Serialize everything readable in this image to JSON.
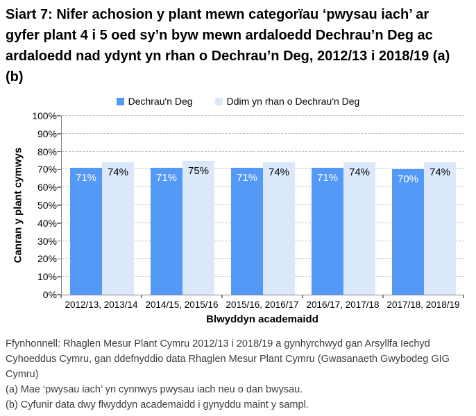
{
  "title": "Siart 7: Nifer achosion y plant mewn categorïau ‘pwysau iach’ ar gyfer plant 4 i 5 oed sy’n byw mewn ardaloedd Dechrau’n Deg ac ardaloedd nad ydynt yn rhan o Dechrau’n Deg, 2012/13 i 2018/19 (a) (b)",
  "chart_data": {
    "type": "bar",
    "categories": [
      "2012/13, 2013/14",
      "2014/15, 2015/16",
      "2015/16, 2016/17",
      "2016/17, 2017/18",
      "2017/18, 2018/19"
    ],
    "series": [
      {
        "name": "Dechrau'n Deg",
        "color": "#5599F7",
        "label_color": "#ffffff",
        "values": [
          71,
          71,
          71,
          71,
          70
        ]
      },
      {
        "name": "Ddim yn rhan o Dechrau'n Deg",
        "color": "#DBE8FB",
        "label_color": "#000000",
        "values": [
          74,
          75,
          74,
          74,
          74
        ]
      }
    ],
    "xlabel": "Blwyddyn academaidd",
    "ylabel": "Canran y plant cymwys",
    "ylim": [
      0,
      100
    ],
    "ytick_step": 10,
    "ytick_suffix": "%",
    "grid": "horizontal-dashed",
    "legend_position": "top"
  },
  "footer": {
    "source": "Ffynhonnell: Rhaglen Mesur Plant Cymru 2012/13 i 2018/19 a gynhyrchwyd gan Arsyllfa Iechyd Cyhoeddus Cymru, gan ddefnyddio data Rhaglen Mesur Plant Cymru (Gwasanaeth Gwybodeg GIG Cymru)",
    "note_a": "(a) Mae ‘pwysau iach’ yn cynnwys pwysau iach neu o dan bwysau.",
    "note_b": "(b) Cyfunir data dwy flwyddyn academaidd i gynyddu maint y sampl."
  }
}
